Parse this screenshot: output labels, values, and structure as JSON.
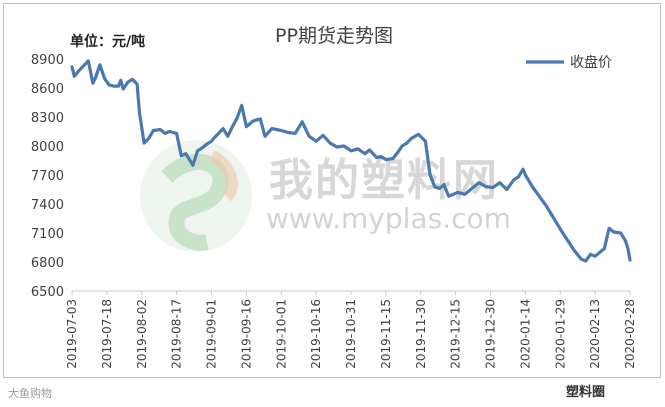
{
  "chart_data": {
    "type": "line",
    "title": "PP期货走势图",
    "unit_label": "单位：元/吨",
    "legend": {
      "entries": [
        "收盘价"
      ],
      "placement": "top-right"
    },
    "ylim": [
      6500,
      8900
    ],
    "yticks": [
      6500,
      6800,
      7100,
      7400,
      7700,
      8000,
      8300,
      8600,
      8900
    ],
    "grid": false,
    "xticks": [
      "2019-07-03",
      "2019-07-18",
      "2019-08-02",
      "2019-08-17",
      "2019-09-01",
      "2019-09-16",
      "2019-10-01",
      "2019-10-16",
      "2019-10-31",
      "2019-11-15",
      "2019-11-30",
      "2019-12-15",
      "2019-12-30",
      "2020-01-14",
      "2020-01-29",
      "2020-02-13",
      "2020-02-28"
    ],
    "xrange": [
      "2019-07-03",
      "2020-02-28"
    ],
    "series": [
      {
        "name": "收盘价",
        "color": "#4a78b0",
        "points": [
          [
            "2019-07-03",
            8820
          ],
          [
            "2019-07-04",
            8720
          ],
          [
            "2019-07-06",
            8780
          ],
          [
            "2019-07-08",
            8830
          ],
          [
            "2019-07-10",
            8880
          ],
          [
            "2019-07-12",
            8650
          ],
          [
            "2019-07-13",
            8700
          ],
          [
            "2019-07-15",
            8840
          ],
          [
            "2019-07-17",
            8700
          ],
          [
            "2019-07-19",
            8630
          ],
          [
            "2019-07-21",
            8620
          ],
          [
            "2019-07-23",
            8620
          ],
          [
            "2019-07-24",
            8680
          ],
          [
            "2019-07-25",
            8590
          ],
          [
            "2019-07-27",
            8660
          ],
          [
            "2019-07-29",
            8690
          ],
          [
            "2019-07-31",
            8640
          ],
          [
            "2019-08-01",
            8350
          ],
          [
            "2019-08-03",
            8030
          ],
          [
            "2019-08-05",
            8080
          ],
          [
            "2019-08-07",
            8160
          ],
          [
            "2019-08-10",
            8170
          ],
          [
            "2019-08-12",
            8130
          ],
          [
            "2019-08-14",
            8150
          ],
          [
            "2019-08-17",
            8130
          ],
          [
            "2019-08-19",
            7900
          ],
          [
            "2019-08-21",
            7920
          ],
          [
            "2019-08-24",
            7800
          ],
          [
            "2019-08-26",
            7950
          ],
          [
            "2019-08-28",
            7980
          ],
          [
            "2019-08-30",
            8020
          ],
          [
            "2019-09-01",
            8050
          ],
          [
            "2019-09-02",
            8080
          ],
          [
            "2019-09-04",
            8130
          ],
          [
            "2019-09-06",
            8180
          ],
          [
            "2019-09-08",
            8100
          ],
          [
            "2019-09-10",
            8200
          ],
          [
            "2019-09-12",
            8290
          ],
          [
            "2019-09-14",
            8420
          ],
          [
            "2019-09-16",
            8200
          ],
          [
            "2019-09-19",
            8260
          ],
          [
            "2019-09-22",
            8280
          ],
          [
            "2019-09-24",
            8100
          ],
          [
            "2019-09-27",
            8180
          ],
          [
            "2019-10-01",
            8160
          ],
          [
            "2019-10-04",
            8140
          ],
          [
            "2019-10-07",
            8130
          ],
          [
            "2019-10-10",
            8250
          ],
          [
            "2019-10-13",
            8100
          ],
          [
            "2019-10-16",
            8050
          ],
          [
            "2019-10-19",
            8110
          ],
          [
            "2019-10-22",
            8030
          ],
          [
            "2019-10-25",
            7990
          ],
          [
            "2019-10-28",
            8000
          ],
          [
            "2019-10-31",
            7950
          ],
          [
            "2019-11-03",
            7970
          ],
          [
            "2019-11-06",
            7920
          ],
          [
            "2019-11-08",
            7960
          ],
          [
            "2019-11-11",
            7880
          ],
          [
            "2019-11-13",
            7890
          ],
          [
            "2019-11-15",
            7860
          ],
          [
            "2019-11-18",
            7870
          ],
          [
            "2019-11-20",
            7930
          ],
          [
            "2019-11-22",
            8000
          ],
          [
            "2019-11-24",
            8030
          ],
          [
            "2019-11-26",
            8080
          ],
          [
            "2019-11-29",
            8120
          ],
          [
            "2019-12-02",
            8050
          ],
          [
            "2019-12-04",
            7700
          ],
          [
            "2019-12-06",
            7580
          ],
          [
            "2019-12-08",
            7560
          ],
          [
            "2019-12-10",
            7600
          ],
          [
            "2019-12-12",
            7480
          ],
          [
            "2019-12-14",
            7500
          ],
          [
            "2019-12-16",
            7520
          ],
          [
            "2019-12-19",
            7500
          ],
          [
            "2019-12-22",
            7560
          ],
          [
            "2019-12-25",
            7620
          ],
          [
            "2019-12-28",
            7580
          ],
          [
            "2019-12-31",
            7570
          ],
          [
            "2020-01-03",
            7620
          ],
          [
            "2020-01-06",
            7550
          ],
          [
            "2020-01-09",
            7650
          ],
          [
            "2020-01-11",
            7680
          ],
          [
            "2020-01-13",
            7760
          ],
          [
            "2020-01-14",
            7700
          ],
          [
            "2020-01-17",
            7580
          ],
          [
            "2020-01-20",
            7480
          ],
          [
            "2020-01-23",
            7380
          ],
          [
            "2020-01-26",
            7260
          ],
          [
            "2020-01-29",
            7140
          ],
          [
            "2020-02-01",
            7030
          ],
          [
            "2020-02-04",
            6920
          ],
          [
            "2020-02-07",
            6830
          ],
          [
            "2020-02-09",
            6810
          ],
          [
            "2020-02-11",
            6880
          ],
          [
            "2020-02-13",
            6860
          ],
          [
            "2020-02-15",
            6900
          ],
          [
            "2020-02-17",
            6940
          ],
          [
            "2020-02-19",
            7150
          ],
          [
            "2020-02-21",
            7110
          ],
          [
            "2020-02-24",
            7100
          ],
          [
            "2020-02-26",
            7020
          ],
          [
            "2020-02-27",
            6950
          ],
          [
            "2020-02-28",
            6820
          ]
        ]
      }
    ]
  },
  "watermark": {
    "brand": "我的塑料网",
    "url": "www.myplas.com"
  },
  "footer": {
    "left": "大鱼购物",
    "right": "塑料圈"
  }
}
